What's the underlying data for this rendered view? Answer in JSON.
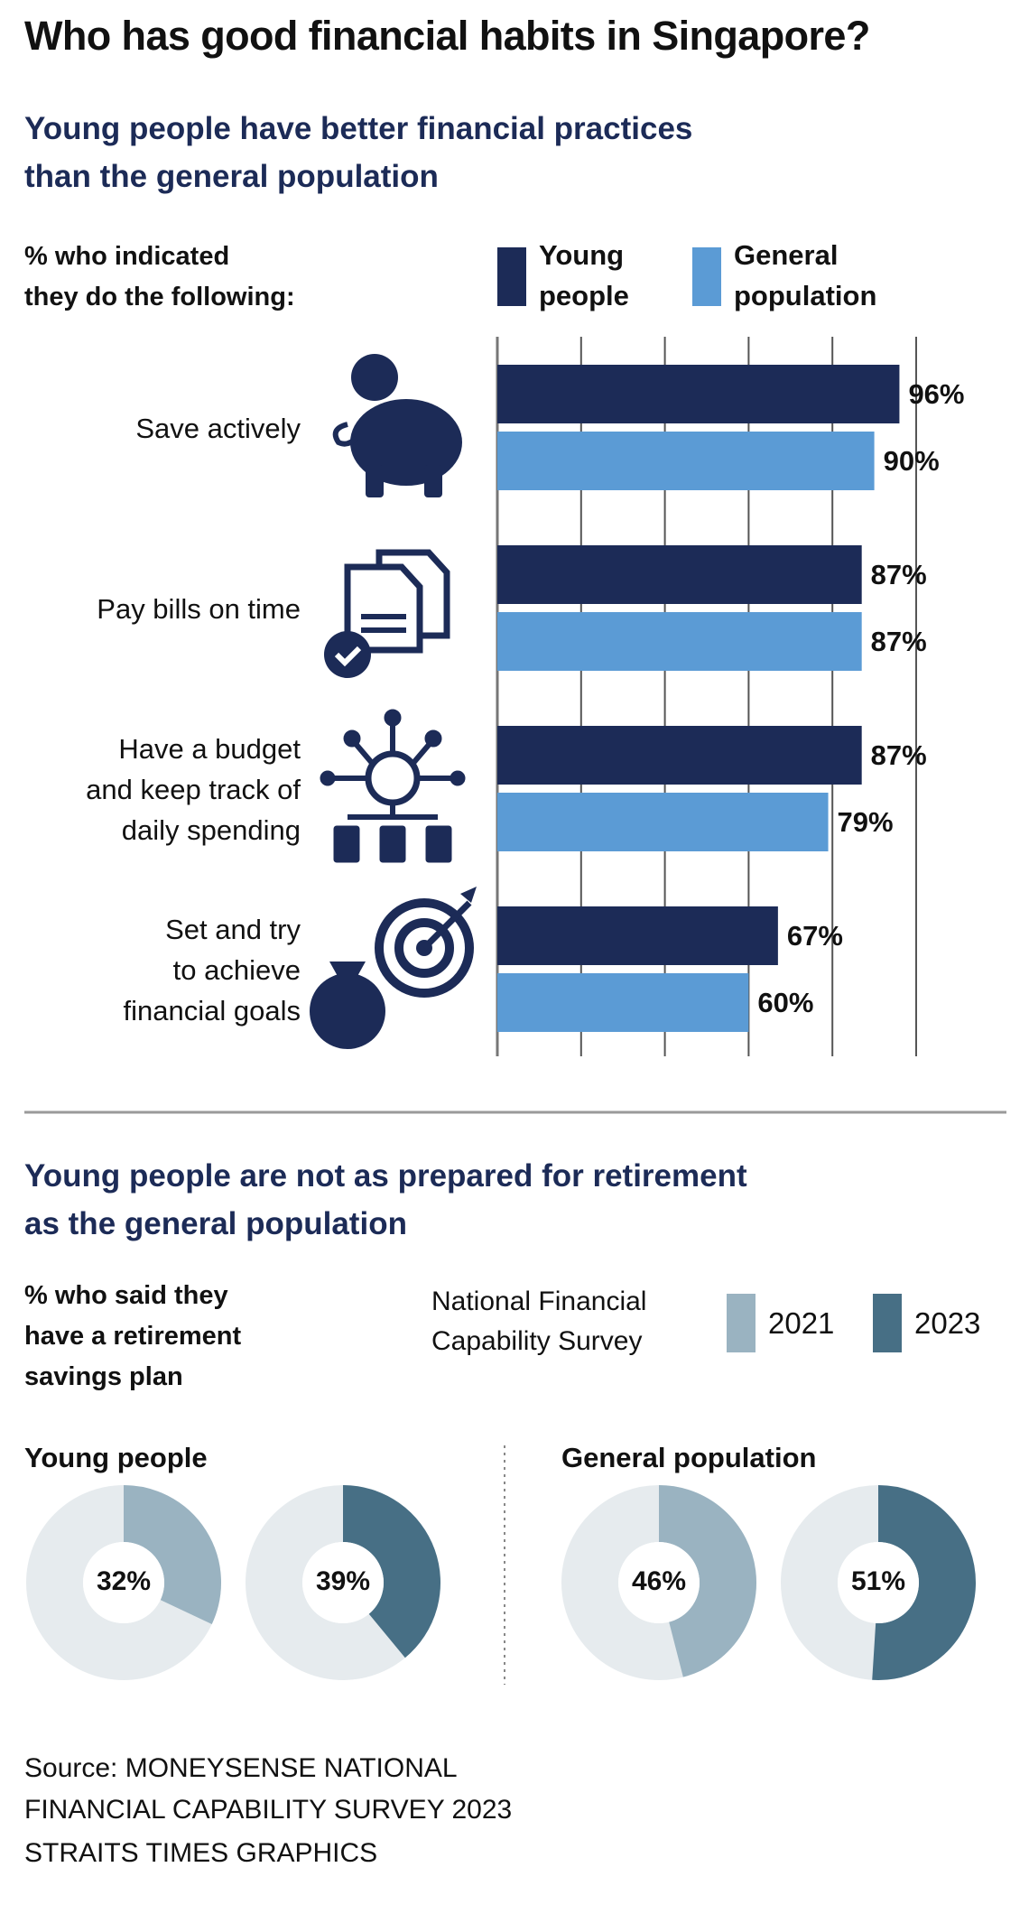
{
  "title": "Who has good financial habits in Singapore?",
  "chart_data": [
    {
      "type": "bar",
      "orientation": "horizontal",
      "title": "Young people have better financial practices\nthan the general population",
      "axis_label": "% who indicated\nthey do the following:",
      "categories": [
        "Save actively",
        "Pay bills on time",
        "Have a budget\nand keep track of\ndaily spending",
        "Set and try\nto achieve\nfinancial goals"
      ],
      "series": [
        {
          "name": "Young\npeople",
          "color": "#1c2b57",
          "values": [
            96,
            87,
            87,
            67
          ],
          "value_labels": [
            "96%",
            "87%",
            "87%",
            "67%"
          ]
        },
        {
          "name": "General\npopulation",
          "color": "#5b9bd5",
          "values": [
            90,
            87,
            79,
            60
          ],
          "value_labels": [
            "90%",
            "87%",
            "79%",
            "60%"
          ]
        }
      ],
      "xlim": [
        0,
        100
      ],
      "xticks": [
        0,
        20,
        40,
        60,
        80,
        100
      ],
      "grid": true
    },
    {
      "type": "donut",
      "title": "Young people are not as prepared for retirement\nas the general population",
      "axis_label": "% who said they\nhave a retirement\nsavings plan",
      "legend_title": "National Financial\nCapability Survey",
      "categories": [
        "Young people",
        "General population"
      ],
      "series": [
        {
          "name": "2021",
          "color": "#9ab3c1",
          "values": [
            32,
            46
          ],
          "value_labels": [
            "32%",
            "46%"
          ]
        },
        {
          "name": "2023",
          "color": "#476f85",
          "values": [
            39,
            51
          ],
          "value_labels": [
            "39%",
            "51%"
          ]
        }
      ],
      "remainder_color": "#e6ebee"
    }
  ],
  "source": "Source: MONEYSENSE NATIONAL\nFINANCIAL CAPABILITY SURVEY 2023",
  "credit": "STRAITS TIMES GRAPHICS"
}
